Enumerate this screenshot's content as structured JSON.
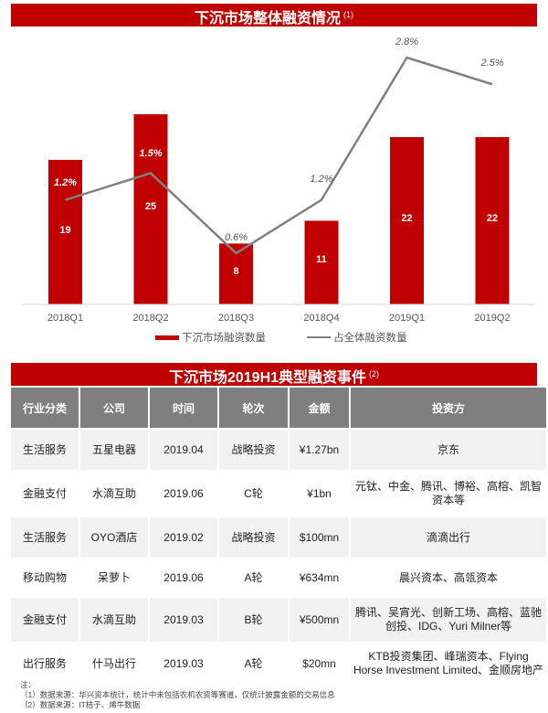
{
  "chart_section": {
    "title": "下沉市场整体融资情况",
    "title_note": "(1)"
  },
  "chart_data": {
    "type": "bar+line",
    "title": "下沉市场整体融资情况",
    "categories": [
      "2018Q1",
      "2018Q2",
      "2018Q3",
      "2018Q4",
      "2019Q1",
      "2019Q2"
    ],
    "series": [
      {
        "name": "下沉市场融资数量",
        "type": "bar",
        "color": "#c00000",
        "values": [
          19,
          25,
          8,
          11,
          22,
          22
        ],
        "labels": [
          "19",
          "25",
          "8",
          "11",
          "22",
          "22"
        ]
      },
      {
        "name": "占全体融资数量",
        "type": "line",
        "color": "#808080",
        "values": [
          1.2,
          1.5,
          0.6,
          1.2,
          2.8,
          2.5
        ],
        "labels": [
          "1.2%",
          "1.5%",
          "0.6%",
          "1.2%",
          "2.8%",
          "2.5%"
        ]
      }
    ],
    "xlabel": "",
    "ylabel": "",
    "grid": false,
    "legend_position": "bottom"
  },
  "legend": {
    "bar_label": "下沉市场融资数量",
    "line_label": "占全体融资数量"
  },
  "table_section": {
    "title": "下沉市场2019H1典型融资事件",
    "title_note": "(2)",
    "headers": [
      "行业分类",
      "公司",
      "时间",
      "轮次",
      "金额",
      "投资方"
    ],
    "rows": [
      [
        "生活服务",
        "五星电器",
        "2019.04",
        "战略投资",
        "¥1.27bn",
        "京东"
      ],
      [
        "金融支付",
        "水滴互助",
        "2019.06",
        "C轮",
        "¥1bn",
        "元钛、中金、腾讯、博裕、高榕、凯智资本等"
      ],
      [
        "生活服务",
        "OYO酒店",
        "2019.02",
        "战略投资",
        "$100mn",
        "滴滴出行"
      ],
      [
        "移动购物",
        "呆萝卜",
        "2019.06",
        "A轮",
        "¥634mn",
        "晨兴资本、高瓴资本"
      ],
      [
        "金融支付",
        "水滴互助",
        "2019.03",
        "B轮",
        "¥500mn",
        "腾讯、吴宵光、创新工场、高榕、蓝驰创投、IDG、Yuri Milner等"
      ],
      [
        "出行服务",
        "什马出行",
        "2019.03",
        "A轮",
        "$20mn",
        "KTB投资集团、峰瑞资本、Flying Horse Investment Limited、金顺房地产"
      ]
    ]
  },
  "notes": {
    "label": "注：",
    "lines": [
      "（1）数据来源：华兴资本统计，统计中未包括农机农资等赛道，仅统计披露金额的交易信息",
      "（2）数据来源：IT桔子、烯牛数据"
    ]
  }
}
